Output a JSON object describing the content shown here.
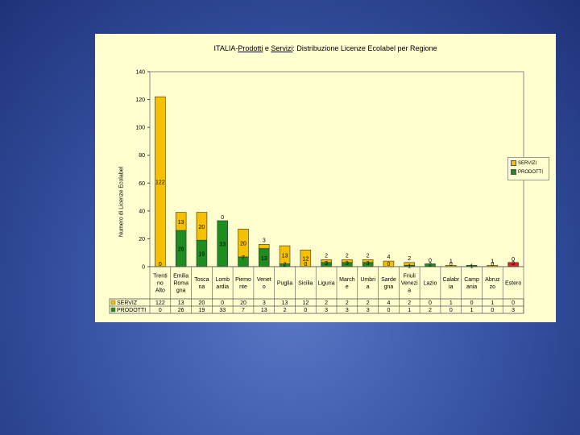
{
  "chart_data": {
    "type": "bar",
    "stacked": true,
    "title_parts": [
      "ITALIA-",
      "Prodotti",
      " e ",
      "Servizi",
      ": Distribuzione Licenze Ecolabel per Regione"
    ],
    "ylabel": "Numero di Licenze Ecolabel",
    "ylim": [
      0,
      140
    ],
    "yticks": [
      "0",
      "20",
      "40",
      "60",
      "80",
      "100",
      "120",
      "140"
    ],
    "grid": false,
    "legend_position": "right",
    "categories": [
      [
        "Trenti",
        "no",
        "Alto"
      ],
      [
        "Emilia",
        "Roma",
        "gna"
      ],
      [
        "Tosca",
        "na"
      ],
      [
        "Lomb",
        "ardia"
      ],
      [
        "Piemo",
        "nte"
      ],
      [
        "Venet",
        "o"
      ],
      [
        "Puglia"
      ],
      [
        "Sicilia"
      ],
      [
        "Liguria"
      ],
      [
        "March",
        "e"
      ],
      [
        "Umbri",
        "a"
      ],
      [
        "Sarde",
        "gna"
      ],
      [
        "Friuli",
        "Venezi",
        "a"
      ],
      [
        "Lazio"
      ],
      [
        "Calabr",
        "ia"
      ],
      [
        "Camp",
        "ania"
      ],
      [
        "Abruz",
        "zo"
      ],
      [
        "Estero"
      ]
    ],
    "series": [
      {
        "name": "PRODOTTI",
        "table_label": "PRODOTTI",
        "color": "#1e8c1e",
        "values": [
          0,
          26,
          19,
          33,
          7,
          13,
          2,
          0,
          3,
          3,
          3,
          0,
          1,
          2,
          0,
          1,
          0,
          3
        ],
        "labels": [
          "0",
          "26",
          "19",
          "33",
          "7",
          "13",
          "2",
          "0",
          "3",
          "3",
          "3",
          "0",
          "1",
          "2",
          "0",
          "1",
          "0",
          "3"
        ]
      },
      {
        "name": "SERVIZI",
        "table_label": "SERVIZ",
        "color": "#f5c000",
        "values": [
          122,
          13,
          20,
          0,
          20,
          3,
          13,
          12,
          2,
          2,
          2,
          4,
          2,
          0,
          1,
          0,
          1,
          0
        ],
        "labels": [
          "122",
          "13",
          "20",
          "0",
          "20",
          "3",
          "13",
          "12",
          "2",
          "2",
          "2",
          "4",
          "2",
          "0",
          "1",
          "",
          "1",
          "0"
        ]
      }
    ],
    "special_color": {
      "category_index": 17,
      "color": "#e02020"
    }
  }
}
